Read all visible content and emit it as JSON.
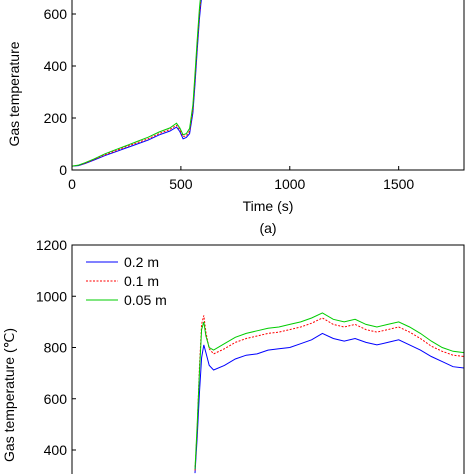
{
  "chart_data": [
    {
      "type": "line",
      "xlabel": "Time (s)",
      "ylabel": "Gas temperature",
      "caption": "(a)",
      "xlim": [
        0,
        1800
      ],
      "ylim": [
        0,
        720
      ],
      "xticks": [
        0,
        500,
        1000,
        1500
      ],
      "yticks": [
        0,
        200,
        400,
        600
      ],
      "grid": false,
      "series": [
        {
          "color": "#0000ff",
          "dash": "solid",
          "x": [
            0,
            30,
            60,
            100,
            150,
            200,
            250,
            300,
            350,
            400,
            450,
            480,
            495,
            510,
            525,
            540,
            555,
            565,
            575,
            585,
            592,
            598,
            605
          ],
          "y": [
            15,
            17,
            25,
            38,
            55,
            70,
            85,
            100,
            115,
            135,
            150,
            165,
            148,
            120,
            125,
            140,
            220,
            330,
            460,
            580,
            640,
            680,
            720
          ]
        },
        {
          "color": "#ff0000",
          "dash": "dotted",
          "x": [
            0,
            30,
            60,
            100,
            150,
            200,
            250,
            300,
            350,
            400,
            450,
            480,
            495,
            510,
            525,
            540,
            555,
            565,
            575,
            585,
            592,
            598,
            605
          ],
          "y": [
            15,
            18,
            26,
            40,
            58,
            74,
            90,
            105,
            120,
            140,
            156,
            172,
            155,
            128,
            132,
            150,
            235,
            350,
            480,
            600,
            660,
            700,
            720
          ]
        },
        {
          "color": "#00cc00",
          "dash": "solid",
          "x": [
            0,
            30,
            60,
            100,
            150,
            200,
            250,
            300,
            350,
            400,
            450,
            480,
            495,
            510,
            525,
            540,
            555,
            565,
            575,
            585,
            592,
            598,
            605
          ],
          "y": [
            15,
            19,
            28,
            42,
            62,
            78,
            94,
            110,
            126,
            146,
            162,
            180,
            162,
            135,
            140,
            160,
            250,
            370,
            500,
            620,
            680,
            710,
            720
          ]
        }
      ]
    },
    {
      "type": "line",
      "ylabel": "Gas temperature (℃)",
      "xlim": [
        0,
        1800
      ],
      "ylim": [
        300,
        1200
      ],
      "yticks": [
        400,
        600,
        800,
        1000,
        1200
      ],
      "grid": false,
      "legend_position": "top-left",
      "series": [
        {
          "name": "0.2 m",
          "color": "#0000ff",
          "dash": "solid",
          "x": [
            565,
            575,
            585,
            595,
            605,
            615,
            630,
            650,
            700,
            750,
            800,
            850,
            900,
            950,
            1000,
            1050,
            1100,
            1150,
            1200,
            1250,
            1300,
            1350,
            1400,
            1450,
            1500,
            1550,
            1600,
            1650,
            1700,
            1750,
            1800
          ],
          "y": [
            310,
            450,
            620,
            760,
            810,
            780,
            730,
            712,
            730,
            755,
            770,
            775,
            790,
            795,
            800,
            815,
            830,
            855,
            835,
            825,
            835,
            820,
            810,
            820,
            830,
            810,
            790,
            765,
            745,
            725,
            720
          ]
        },
        {
          "name": "0.1 m",
          "color": "#ff0000",
          "dash": "dotted",
          "x": [
            565,
            575,
            585,
            595,
            605,
            615,
            630,
            650,
            700,
            750,
            800,
            850,
            900,
            950,
            1000,
            1050,
            1100,
            1150,
            1200,
            1250,
            1300,
            1350,
            1400,
            1450,
            1500,
            1550,
            1600,
            1650,
            1700,
            1750,
            1800
          ],
          "y": [
            320,
            480,
            720,
            890,
            925,
            860,
            795,
            775,
            795,
            820,
            835,
            845,
            855,
            860,
            870,
            880,
            895,
            915,
            890,
            880,
            890,
            870,
            860,
            870,
            880,
            860,
            835,
            805,
            785,
            770,
            765
          ]
        },
        {
          "name": "0.05 m",
          "color": "#00cc00",
          "dash": "solid",
          "x": [
            565,
            575,
            585,
            595,
            605,
            615,
            630,
            650,
            700,
            750,
            800,
            850,
            900,
            950,
            1000,
            1050,
            1100,
            1150,
            1200,
            1250,
            1300,
            1350,
            1400,
            1450,
            1500,
            1550,
            1600,
            1650,
            1700,
            1750,
            1800
          ],
          "y": [
            325,
            500,
            700,
            870,
            900,
            845,
            800,
            790,
            815,
            840,
            855,
            865,
            875,
            880,
            890,
            900,
            915,
            935,
            910,
            900,
            910,
            890,
            880,
            890,
            900,
            880,
            855,
            825,
            800,
            785,
            780
          ]
        }
      ]
    }
  ]
}
